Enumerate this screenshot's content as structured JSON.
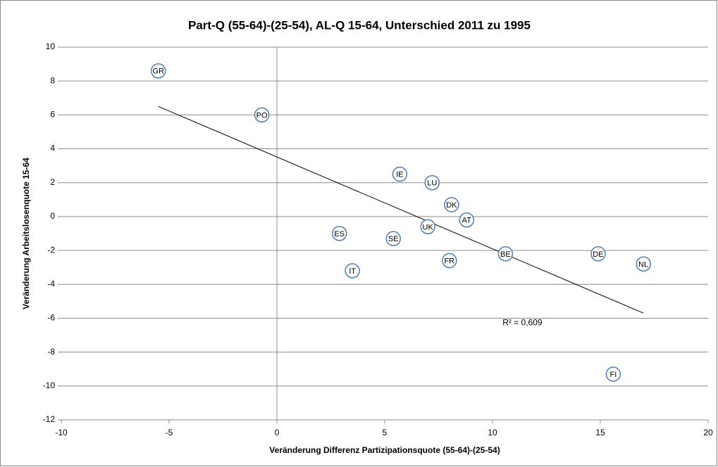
{
  "chart_data": {
    "type": "scatter",
    "title": "Part-Q (55-64)-(25-54), AL-Q 15-64, Unterschied 2011 zu 1995",
    "x_label": "Veränderung Differenz Partizipationsquote (55-64)-(25-54)",
    "y_label": "Veränderung Arbeitslosenquote 15-64",
    "point_labels": [
      "GR",
      "PO",
      "IE",
      "LU",
      "DK",
      "AT",
      "UK",
      "ES",
      "SE",
      "BE",
      "FR",
      "IT",
      "DE",
      "NL",
      "FI"
    ],
    "x": [
      -5.5,
      -0.7,
      5.7,
      7.2,
      8.1,
      8.8,
      7.0,
      2.9,
      5.4,
      10.6,
      8.0,
      3.5,
      14.9,
      17.0,
      15.6
    ],
    "values": [
      8.6,
      6.0,
      2.5,
      2.0,
      0.7,
      -0.2,
      -0.6,
      -1.0,
      -1.3,
      -2.2,
      -2.6,
      -3.2,
      -2.2,
      -2.8,
      -9.3
    ],
    "color": "#4a7ebb",
    "trendline": {
      "x": [
        -5.5,
        17.0
      ],
      "y": [
        6.5,
        -5.7
      ],
      "label": "R² = 0,609"
    },
    "xlim": [
      -10,
      20
    ],
    "xticks": [
      -10,
      -5,
      0,
      5,
      10,
      15,
      20
    ],
    "ylim": [
      -12,
      10
    ],
    "yticks": [
      -12,
      -10,
      -8,
      -6,
      -4,
      -2,
      0,
      2,
      4,
      6,
      8,
      10
    ],
    "grid": true
  }
}
